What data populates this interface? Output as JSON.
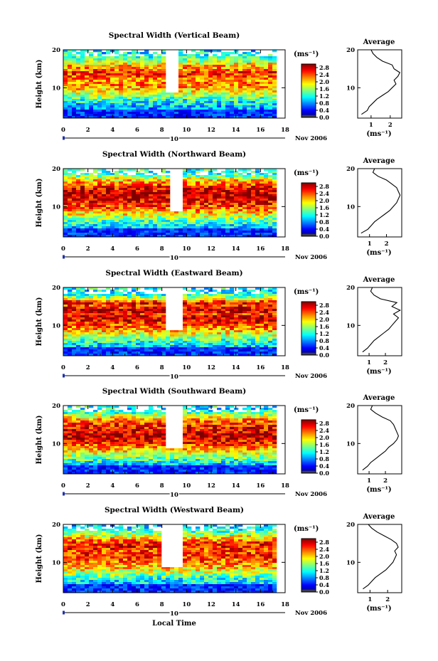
{
  "figure": {
    "x_axis_title": "Local Time",
    "date_label": "Nov 2006",
    "date_day": "10",
    "height_label": "Height (km)",
    "avg_title": "Average",
    "unit_label": "(ms⁻¹)"
  },
  "chart_data": [
    {
      "type": "heatmap",
      "title": "Spectral Width (Vertical Beam)",
      "xlabel": "Local Time",
      "ylabel": "Height (km)",
      "xlim": [
        0,
        18
      ],
      "ylim": [
        2,
        20
      ],
      "x_ticks": [
        "0",
        "2",
        "4",
        "6",
        "8",
        "10",
        "12",
        "14",
        "16",
        "18"
      ],
      "y_ticks": [
        "10",
        "20"
      ],
      "colorbar": {
        "label": "(ms⁻¹)",
        "ticks": [
          "0.0",
          "0.4",
          "0.8",
          "1.2",
          "1.6",
          "2.0",
          "2.4",
          "2.8"
        ],
        "range": [
          0,
          3.0
        ]
      },
      "data_coverage_end_hour": 17,
      "gap_hours": [
        [
          8.2,
          9.4
        ]
      ],
      "average_profile": {
        "title": "Average",
        "xlabel": "(ms⁻¹)",
        "x_ticks": [
          "1",
          "2"
        ],
        "xlim": [
          0.3,
          2.6
        ],
        "height": [
          3,
          4,
          5,
          6,
          7,
          8,
          9,
          10,
          11,
          12,
          13,
          14,
          15,
          16,
          17,
          18,
          19,
          20
        ],
        "width": [
          0.5,
          0.8,
          0.9,
          1.1,
          1.3,
          1.6,
          1.9,
          2.1,
          2.3,
          2.2,
          2.4,
          2.5,
          2.2,
          2.1,
          1.6,
          1.3,
          1.1,
          1.0
        ]
      }
    },
    {
      "type": "heatmap",
      "title": "Spectral Width (Northward Beam)",
      "xlabel": "Local Time",
      "ylabel": "Height (km)",
      "xlim": [
        0,
        18
      ],
      "ylim": [
        2,
        20
      ],
      "x_ticks": [
        "0",
        "2",
        "4",
        "6",
        "8",
        "10",
        "12",
        "14",
        "16",
        "18"
      ],
      "y_ticks": [
        "10",
        "20"
      ],
      "colorbar": {
        "label": "(ms⁻¹)",
        "ticks": [
          "0.0",
          "0.4",
          "0.8",
          "1.2",
          "1.6",
          "2.0",
          "2.4",
          "2.8"
        ],
        "range": [
          0,
          3.0
        ]
      },
      "data_coverage_end_hour": 17,
      "gap_hours": [
        [
          8.6,
          9.7
        ]
      ],
      "average_profile": {
        "title": "Average",
        "xlabel": "(ms⁻¹)",
        "x_ticks": [
          "1",
          "2"
        ],
        "xlim": [
          0.3,
          2.9
        ],
        "height": [
          3,
          4,
          5,
          6,
          7,
          8,
          9,
          10,
          11,
          12,
          13,
          14,
          15,
          16,
          17,
          18,
          19,
          20
        ],
        "width": [
          0.5,
          0.9,
          1.1,
          1.3,
          1.6,
          1.9,
          2.2,
          2.4,
          2.6,
          2.7,
          2.8,
          2.7,
          2.6,
          2.3,
          2.0,
          1.5,
          1.2,
          1.3
        ]
      }
    },
    {
      "type": "heatmap",
      "title": "Spectral Width (Eastward Beam)",
      "xlabel": "Local Time",
      "ylabel": "Height (km)",
      "xlim": [
        0,
        18
      ],
      "ylim": [
        2,
        20
      ],
      "x_ticks": [
        "0",
        "2",
        "4",
        "6",
        "8",
        "10",
        "12",
        "14",
        "16",
        "18"
      ],
      "y_ticks": [
        "10",
        "20"
      ],
      "colorbar": {
        "label": "(ms⁻¹)",
        "ticks": [
          "0.0",
          "0.4",
          "0.8",
          "1.2",
          "1.6",
          "2.0",
          "2.4",
          "2.8"
        ],
        "range": [
          0,
          3.0
        ]
      },
      "data_coverage_end_hour": 17,
      "gap_hours": [
        [
          8.2,
          9.8
        ]
      ],
      "average_profile": {
        "title": "Average",
        "xlabel": "(ms⁻¹)",
        "x_ticks": [
          "1",
          "2"
        ],
        "xlim": [
          0.3,
          3.0
        ],
        "height": [
          3,
          4,
          5,
          6,
          7,
          8,
          9,
          10,
          11,
          12,
          13,
          14,
          15,
          16,
          17,
          18,
          19,
          20
        ],
        "width": [
          0.6,
          0.9,
          1.1,
          1.3,
          1.6,
          1.9,
          2.2,
          2.4,
          2.6,
          2.8,
          2.5,
          2.9,
          2.4,
          2.7,
          1.7,
          1.3,
          1.1,
          1.2
        ]
      }
    },
    {
      "type": "heatmap",
      "title": "Spectral Width (Southward Beam)",
      "xlabel": "Local Time",
      "ylabel": "Height (km)",
      "xlim": [
        0,
        18
      ],
      "ylim": [
        2,
        20
      ],
      "x_ticks": [
        "0",
        "2",
        "4",
        "6",
        "8",
        "10",
        "12",
        "14",
        "16",
        "18"
      ],
      "y_ticks": [
        "10",
        "20"
      ],
      "colorbar": {
        "label": "(ms⁻¹)",
        "ticks": [
          "0.0",
          "0.4",
          "0.8",
          "1.2",
          "1.6",
          "2.0",
          "2.4",
          "2.8"
        ],
        "range": [
          0,
          3.0
        ]
      },
      "data_coverage_end_hour": 17,
      "gap_hours": [
        [
          8.4,
          9.7
        ]
      ],
      "average_profile": {
        "title": "Average",
        "xlabel": "(ms⁻¹)",
        "x_ticks": [
          "1",
          "2"
        ],
        "xlim": [
          0.3,
          3.0
        ],
        "height": [
          3,
          4,
          5,
          6,
          7,
          8,
          9,
          10,
          11,
          12,
          13,
          14,
          15,
          16,
          17,
          18,
          19,
          20
        ],
        "width": [
          0.6,
          0.9,
          1.1,
          1.4,
          1.7,
          2.0,
          2.2,
          2.5,
          2.7,
          2.8,
          2.7,
          2.6,
          2.5,
          2.3,
          1.8,
          1.4,
          1.1,
          1.2
        ]
      }
    },
    {
      "type": "heatmap",
      "title": "Spectral Width (Westward Beam)",
      "xlabel": "Local Time",
      "ylabel": "Height (km)",
      "xlim": [
        0,
        18
      ],
      "ylim": [
        2,
        20
      ],
      "x_ticks": [
        "0",
        "2",
        "4",
        "6",
        "8",
        "10",
        "12",
        "14",
        "16",
        "18"
      ],
      "y_ticks": [
        "10",
        "20"
      ],
      "colorbar": {
        "label": "(ms⁻¹)",
        "ticks": [
          "0.0",
          "0.4",
          "0.8",
          "1.2",
          "1.6",
          "2.0",
          "2.4",
          "2.8"
        ],
        "range": [
          0,
          3.0
        ]
      },
      "data_coverage_end_hour": 17,
      "gap_hours": [
        [
          7.8,
          9.6
        ]
      ],
      "average_profile": {
        "title": "Average",
        "xlabel": "(ms⁻¹)",
        "x_ticks": [
          "1",
          "2"
        ],
        "xlim": [
          0.3,
          2.8
        ],
        "height": [
          3,
          4,
          5,
          6,
          7,
          8,
          9,
          10,
          11,
          12,
          13,
          14,
          15,
          16,
          17,
          18,
          19,
          20
        ],
        "width": [
          0.6,
          0.9,
          1.1,
          1.3,
          1.6,
          1.9,
          2.1,
          2.3,
          2.4,
          2.5,
          2.4,
          2.6,
          2.5,
          2.2,
          1.8,
          1.4,
          1.1,
          0.9
        ]
      }
    }
  ]
}
